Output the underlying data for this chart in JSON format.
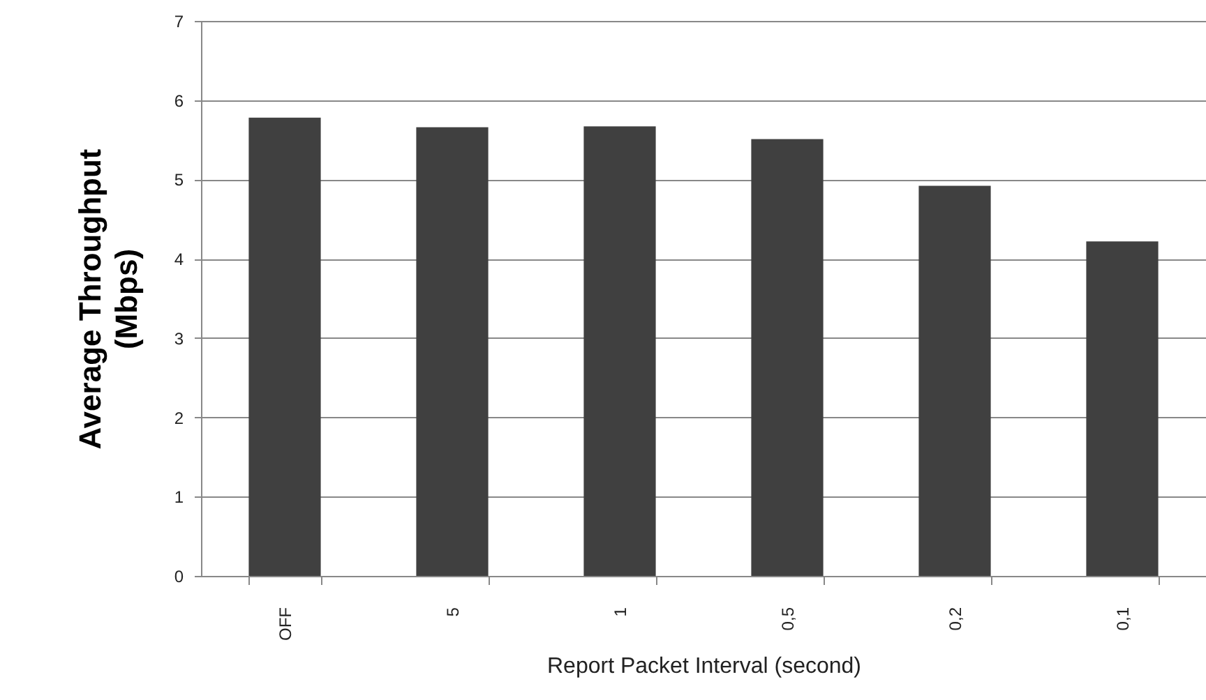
{
  "chart_data": {
    "type": "bar",
    "xlabel": "Report Packet Interval (second)",
    "ylabel": "Average Throughput (Mbps)",
    "categories": [
      "OFF",
      "5",
      "1",
      "0,5",
      "0,2",
      "0,1"
    ],
    "values": [
      5.78,
      5.66,
      5.67,
      5.51,
      4.92,
      4.22
    ],
    "color": "#404040",
    "ylim": [
      0,
      7
    ],
    "yticks": [
      0,
      1,
      2,
      3,
      4,
      5,
      6,
      7
    ],
    "grid": "y"
  }
}
